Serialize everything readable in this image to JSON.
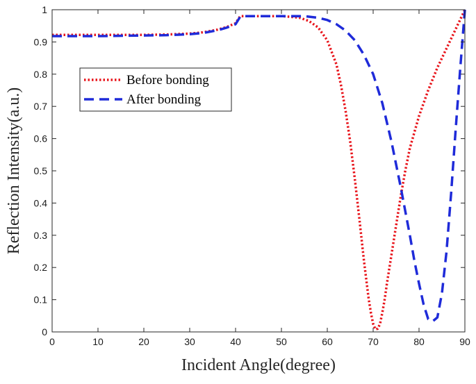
{
  "chart_data": {
    "type": "line",
    "xlabel": "Incident Angle(degree)",
    "ylabel": "Reflection Intensity(a.u.)",
    "xlim": [
      0,
      90
    ],
    "ylim": [
      0,
      1
    ],
    "xticks": [
      "0",
      "10",
      "20",
      "30",
      "40",
      "50",
      "60",
      "70",
      "80",
      "90"
    ],
    "yticks": [
      "0",
      "0.1",
      "0.2",
      "0.3",
      "0.4",
      "0.5",
      "0.6",
      "0.7",
      "0.8",
      "0.9",
      "1"
    ],
    "grid": false,
    "legend_position": "upper-left",
    "series": [
      {
        "name": "Before bonding",
        "color": "#e8141b",
        "style": "dotted",
        "x": [
          0,
          10,
          20,
          25,
          30,
          33,
          36,
          38,
          40,
          41,
          42,
          45,
          50,
          52,
          54,
          56,
          58,
          60,
          62,
          63,
          64,
          65,
          66,
          67,
          68,
          69,
          69.5,
          70,
          70.5,
          71,
          71.5,
          72,
          72.5,
          73,
          74,
          75,
          76,
          77,
          78,
          79,
          80,
          82,
          84,
          86,
          88,
          89,
          90
        ],
        "y": [
          0.922,
          0.922,
          0.922,
          0.923,
          0.926,
          0.93,
          0.938,
          0.946,
          0.958,
          0.98,
          0.98,
          0.98,
          0.98,
          0.978,
          0.975,
          0.965,
          0.945,
          0.905,
          0.83,
          0.765,
          0.685,
          0.59,
          0.475,
          0.35,
          0.22,
          0.105,
          0.06,
          0.025,
          0.008,
          0.01,
          0.025,
          0.06,
          0.1,
          0.15,
          0.24,
          0.33,
          0.42,
          0.5,
          0.57,
          0.62,
          0.67,
          0.75,
          0.82,
          0.88,
          0.94,
          0.97,
          1.0
        ]
      },
      {
        "name": "After bonding",
        "color": "#1f2bd9",
        "style": "dashed",
        "x": [
          0,
          10,
          20,
          25,
          30,
          33,
          36,
          38,
          40,
          41,
          42,
          45,
          50,
          55,
          58,
          60,
          62,
          64,
          66,
          68,
          70,
          72,
          74,
          76,
          78,
          79,
          80,
          81,
          82,
          83,
          84,
          85,
          86,
          87,
          88,
          89,
          90
        ],
        "y": [
          0.918,
          0.918,
          0.92,
          0.921,
          0.924,
          0.928,
          0.936,
          0.944,
          0.955,
          0.978,
          0.98,
          0.98,
          0.98,
          0.98,
          0.975,
          0.968,
          0.955,
          0.935,
          0.905,
          0.86,
          0.8,
          0.71,
          0.59,
          0.45,
          0.3,
          0.22,
          0.15,
          0.085,
          0.04,
          0.033,
          0.045,
          0.12,
          0.25,
          0.43,
          0.63,
          0.82,
          1.0
        ]
      }
    ]
  }
}
